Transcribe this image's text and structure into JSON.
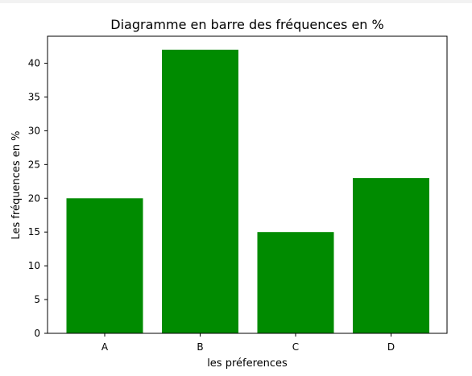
{
  "chart_data": {
    "type": "bar",
    "title": "Diagramme en barre des fréquences en %",
    "xlabel": "les préferences",
    "ylabel": "Les fréquences en %",
    "categories": [
      "A",
      "B",
      "C",
      "D"
    ],
    "values": [
      20,
      42,
      15,
      23
    ],
    "ylim": [
      0,
      44
    ],
    "yticks": [
      0,
      5,
      10,
      15,
      20,
      25,
      30,
      35,
      40
    ],
    "grid": false,
    "legend": "none",
    "bar_color": "#008b00"
  }
}
